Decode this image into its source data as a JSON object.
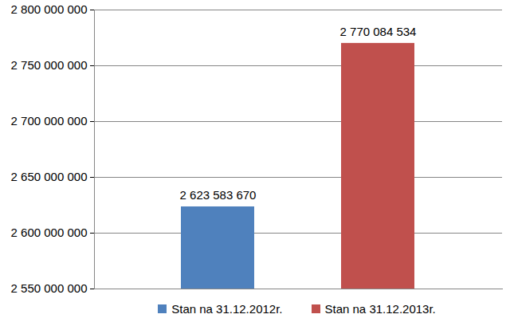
{
  "chart_data": {
    "type": "bar",
    "categories": [
      "Stan na 31.12.2012r.",
      "Stan na 31.12.2013r."
    ],
    "values": [
      2623583670,
      2770084534
    ],
    "value_labels": [
      "2 623 583 670",
      "2 770 084 534"
    ],
    "colors": [
      "#4f81bd",
      "#c0504d"
    ],
    "ylim": [
      2550000000,
      2800000000
    ],
    "yticks": [
      {
        "value": 2550000000,
        "label": "2 550 000 000"
      },
      {
        "value": 2600000000,
        "label": "2 600 000 000"
      },
      {
        "value": 2650000000,
        "label": "2 650 000 000"
      },
      {
        "value": 2700000000,
        "label": "2 700 000 000"
      },
      {
        "value": 2750000000,
        "label": "2 750 000 000"
      },
      {
        "value": 2800000000,
        "label": "2 800 000 000"
      }
    ],
    "grid": true,
    "data_labels": true,
    "legend": "bottom",
    "tick_labels": "y"
  }
}
